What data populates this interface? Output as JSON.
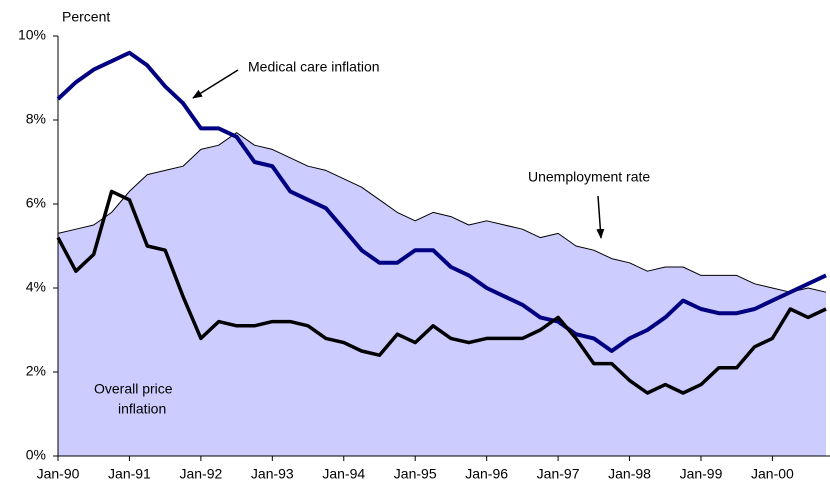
{
  "chart_data": {
    "type": "line",
    "y_label": "Percent",
    "categories": [
      "Jan-90",
      null,
      null,
      null,
      "Jan-91",
      null,
      null,
      null,
      "Jan-92",
      null,
      null,
      null,
      "Jan-93",
      null,
      null,
      null,
      "Jan-94",
      null,
      null,
      null,
      "Jan-95",
      null,
      null,
      null,
      "Jan-96",
      null,
      null,
      null,
      "Jan-97",
      null,
      null,
      null,
      "Jan-98",
      null,
      null,
      null,
      "Jan-99",
      null,
      null,
      null,
      "Jan-00",
      null,
      null,
      null
    ],
    "series": [
      {
        "name": "Unemployment rate",
        "color": "#000000",
        "fill": "#ccccff",
        "values": [
          5.3,
          5.4,
          5.5,
          5.8,
          6.3,
          6.7,
          6.8,
          6.9,
          7.3,
          7.4,
          7.7,
          7.4,
          7.3,
          7.1,
          6.9,
          6.8,
          6.6,
          6.4,
          6.1,
          5.8,
          5.6,
          5.8,
          5.7,
          5.5,
          5.6,
          5.5,
          5.4,
          5.2,
          5.3,
          5.0,
          4.9,
          4.7,
          4.6,
          4.4,
          4.5,
          4.5,
          4.3,
          4.3,
          4.3,
          4.1,
          4.0,
          3.9,
          4.0,
          3.9
        ]
      },
      {
        "name": "Medical care inflation",
        "color": "#000080",
        "values": [
          8.5,
          8.9,
          9.2,
          9.4,
          9.6,
          9.3,
          8.8,
          8.4,
          7.8,
          7.8,
          7.6,
          7.0,
          6.9,
          6.3,
          6.1,
          5.9,
          5.4,
          4.9,
          4.6,
          4.6,
          4.9,
          4.9,
          4.5,
          4.3,
          4.0,
          3.8,
          3.6,
          3.3,
          3.2,
          2.9,
          2.8,
          2.5,
          2.8,
          3.0,
          3.3,
          3.7,
          3.5,
          3.4,
          3.4,
          3.5,
          3.7,
          3.9,
          4.1,
          4.3
        ]
      },
      {
        "name": [
          "Overall price",
          "inflation"
        ],
        "color": "#000000",
        "values": [
          5.2,
          4.4,
          4.8,
          6.3,
          6.1,
          5.0,
          4.9,
          3.8,
          2.8,
          3.2,
          3.1,
          3.1,
          3.2,
          3.2,
          3.1,
          2.8,
          2.7,
          2.5,
          2.4,
          2.9,
          2.7,
          3.1,
          2.8,
          2.7,
          2.8,
          2.8,
          2.8,
          3.0,
          3.3,
          2.8,
          2.2,
          2.2,
          1.8,
          1.5,
          1.7,
          1.5,
          1.7,
          2.1,
          2.1,
          2.6,
          2.8,
          3.5,
          3.3,
          3.5
        ]
      }
    ],
    "ylim": [
      0,
      10
    ],
    "yticks": [
      {
        "value": 0,
        "label": "0%"
      },
      {
        "value": 2,
        "label": "2%"
      },
      {
        "value": 4,
        "label": "4%"
      },
      {
        "value": 6,
        "label": "6%"
      },
      {
        "value": 8,
        "label": "8%"
      },
      {
        "value": 10,
        "label": "10%"
      }
    ]
  }
}
